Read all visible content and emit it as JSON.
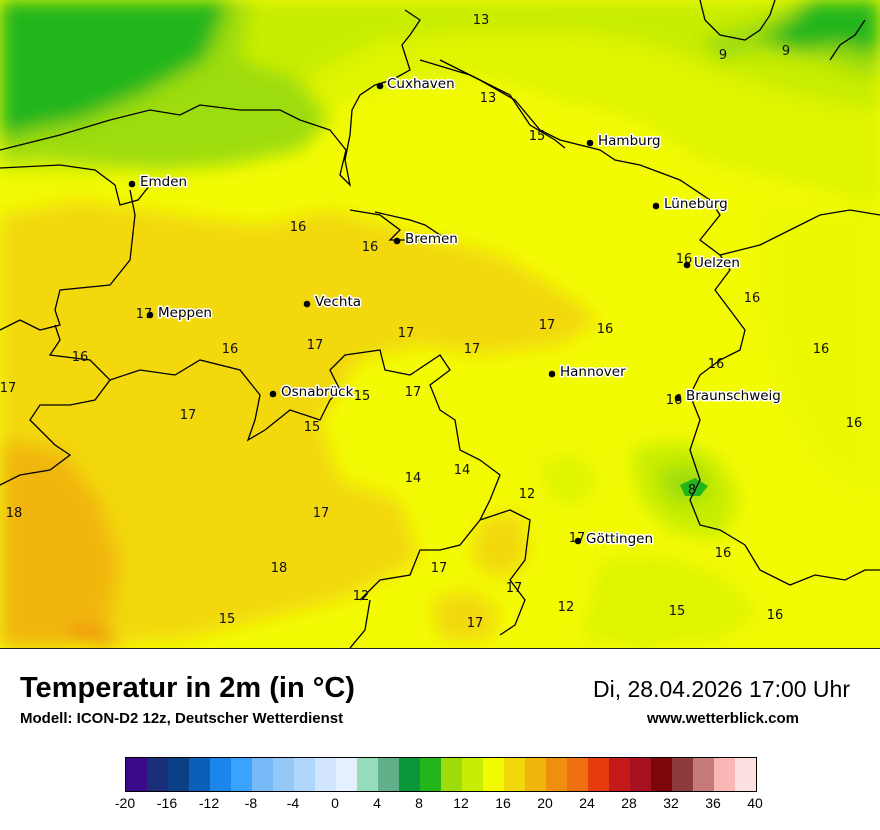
{
  "map": {
    "cities": [
      {
        "name": "Cuxhaven"
      },
      {
        "name": "Hamburg"
      },
      {
        "name": "Emden"
      },
      {
        "name": "Lüneburg"
      },
      {
        "name": "Bremen"
      },
      {
        "name": "Uelzen"
      },
      {
        "name": "Vechta"
      },
      {
        "name": "Meppen"
      },
      {
        "name": "Hannover"
      },
      {
        "name": "Osnabrück"
      },
      {
        "name": "Braunschweig"
      },
      {
        "name": "Göttingen"
      }
    ],
    "values": [
      "13",
      "9",
      "9",
      "13",
      "15",
      "16",
      "16",
      "16",
      "17",
      "16",
      "17",
      "16",
      "16",
      "17",
      "17",
      "17",
      "16",
      "16",
      "17",
      "15",
      "17",
      "16",
      "16",
      "15",
      "14",
      "14",
      "12",
      "8",
      "18",
      "17",
      "17",
      "16",
      "18",
      "17",
      "17",
      "12",
      "12",
      "15",
      "16",
      "15",
      "17",
      "16"
    ]
  },
  "header": {
    "title": "Temperatur in 2m (in °C)",
    "model": "Modell: ICON-D2 12z, Deutscher Wetterdienst",
    "datetime": "Di, 28.04.2026 17:00 Uhr",
    "website": "www.wetterblick.com"
  },
  "legend": {
    "colors": [
      "#3a0a8a",
      "#1a2e7a",
      "#0b3f86",
      "#0a5fb8",
      "#1c86ec",
      "#3aa3ff",
      "#78b9f7",
      "#94c8f9",
      "#b1d6fb",
      "#d1e6fd",
      "#e4f0fe",
      "#94dcbc",
      "#62b08a",
      "#099739",
      "#22b61a",
      "#9ddc0a",
      "#c7ed03",
      "#f3fb03",
      "#f2d808",
      "#f1b60b",
      "#ef8f0e",
      "#ee6f10",
      "#e53b0f",
      "#c2191a",
      "#a81220",
      "#7d0609",
      "#8c3a3a",
      "#c77b79",
      "#fbb7b5",
      "#fde1e1"
    ],
    "ticks": [
      "-20",
      "-16",
      "-12",
      "-8",
      "-4",
      "0",
      "4",
      "8",
      "12",
      "16",
      "20",
      "24",
      "28",
      "32",
      "36",
      "40"
    ]
  }
}
